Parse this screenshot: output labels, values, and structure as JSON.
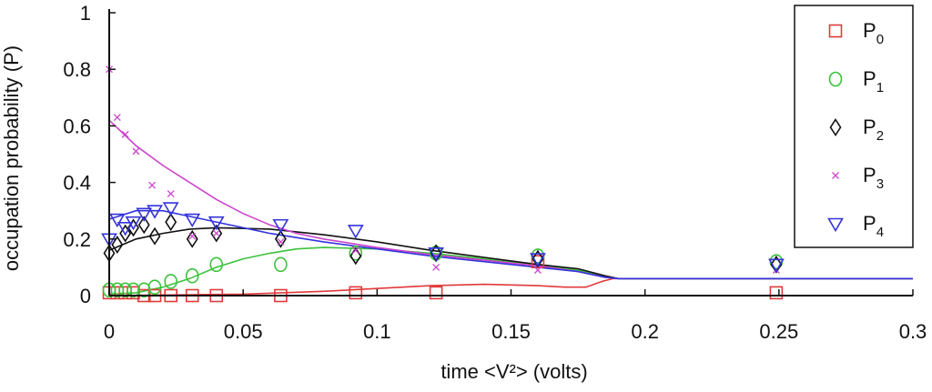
{
  "chart_data": {
    "type": "scatter",
    "title": "",
    "xlabel": "time <V²> (volts)",
    "ylabel": "occupation probability (P)",
    "xlim": [
      0,
      0.3
    ],
    "ylim": [
      0,
      1
    ],
    "xticks": [
      0,
      0.05,
      0.1,
      0.15,
      0.2,
      0.25,
      0.3
    ],
    "xtick_labels": [
      "0",
      "0.05",
      "0.1",
      "0.15",
      "0.2",
      "0.25",
      "0.3"
    ],
    "yticks": [
      0,
      0.2,
      0.4,
      0.6,
      0.8,
      1
    ],
    "ytick_labels": [
      "0",
      "0.2",
      "0.4",
      "0.6",
      "0.8",
      "1"
    ],
    "legend_position": "top-right",
    "series": [
      {
        "name": "P0",
        "base": "P",
        "sub": "0",
        "marker": "square",
        "color": "#e03a3a",
        "points": [
          [
            0,
            0.01
          ],
          [
            0.003,
            0.01
          ],
          [
            0.006,
            0.01
          ],
          [
            0.009,
            0.01
          ],
          [
            0.013,
            0.0
          ],
          [
            0.017,
            0.0
          ],
          [
            0.023,
            0.0
          ],
          [
            0.031,
            0.0
          ],
          [
            0.04,
            0.0
          ],
          [
            0.064,
            0.0
          ],
          [
            0.092,
            0.01
          ],
          [
            0.122,
            0.01
          ],
          [
            0.16,
            0.12
          ],
          [
            0.249,
            0.01
          ]
        ],
        "fit": [
          [
            0,
            0.0
          ],
          [
            0.05,
            0.005
          ],
          [
            0.08,
            0.015
          ],
          [
            0.1,
            0.025
          ],
          [
            0.12,
            0.035
          ],
          [
            0.14,
            0.04
          ],
          [
            0.16,
            0.035
          ],
          [
            0.17,
            0.03
          ],
          [
            0.178,
            0.03
          ],
          [
            0.184,
            0.05
          ],
          [
            0.188,
            0.06
          ],
          [
            0.3,
            0.06
          ]
        ]
      },
      {
        "name": "P1",
        "base": "P",
        "sub": "1",
        "marker": "circle",
        "color": "#3cc23c",
        "points": [
          [
            0,
            0.02
          ],
          [
            0.003,
            0.02
          ],
          [
            0.006,
            0.02
          ],
          [
            0.009,
            0.02
          ],
          [
            0.013,
            0.02
          ],
          [
            0.017,
            0.03
          ],
          [
            0.023,
            0.05
          ],
          [
            0.031,
            0.07
          ],
          [
            0.04,
            0.11
          ],
          [
            0.064,
            0.11
          ],
          [
            0.092,
            0.15
          ],
          [
            0.122,
            0.15
          ],
          [
            0.16,
            0.14
          ],
          [
            0.249,
            0.12
          ]
        ],
        "fit": [
          [
            0,
            0.005
          ],
          [
            0.01,
            0.01
          ],
          [
            0.02,
            0.03
          ],
          [
            0.03,
            0.06
          ],
          [
            0.04,
            0.1
          ],
          [
            0.05,
            0.13
          ],
          [
            0.06,
            0.15
          ],
          [
            0.07,
            0.165
          ],
          [
            0.08,
            0.17
          ],
          [
            0.1,
            0.165
          ],
          [
            0.12,
            0.15
          ],
          [
            0.14,
            0.13
          ],
          [
            0.16,
            0.11
          ],
          [
            0.175,
            0.09
          ],
          [
            0.185,
            0.065
          ],
          [
            0.19,
            0.06
          ],
          [
            0.3,
            0.06
          ]
        ]
      },
      {
        "name": "P2",
        "base": "P",
        "sub": "2",
        "marker": "diamond",
        "color": "#111111",
        "points": [
          [
            0,
            0.15
          ],
          [
            0.003,
            0.18
          ],
          [
            0.006,
            0.22
          ],
          [
            0.009,
            0.24
          ],
          [
            0.013,
            0.25
          ],
          [
            0.017,
            0.21
          ],
          [
            0.023,
            0.26
          ],
          [
            0.031,
            0.2
          ],
          [
            0.04,
            0.22
          ],
          [
            0.064,
            0.2
          ],
          [
            0.092,
            0.14
          ],
          [
            0.122,
            0.15
          ],
          [
            0.16,
            0.13
          ],
          [
            0.249,
            0.11
          ]
        ],
        "fit": [
          [
            0,
            0.16
          ],
          [
            0.01,
            0.2
          ],
          [
            0.02,
            0.22
          ],
          [
            0.03,
            0.235
          ],
          [
            0.04,
            0.24
          ],
          [
            0.06,
            0.235
          ],
          [
            0.08,
            0.215
          ],
          [
            0.1,
            0.19
          ],
          [
            0.12,
            0.16
          ],
          [
            0.14,
            0.135
          ],
          [
            0.16,
            0.11
          ],
          [
            0.175,
            0.095
          ],
          [
            0.185,
            0.07
          ],
          [
            0.19,
            0.06
          ],
          [
            0.3,
            0.06
          ]
        ]
      },
      {
        "name": "P3",
        "base": "P",
        "sub": "3",
        "marker": "x",
        "color": "#cc44cc",
        "points": [
          [
            0,
            0.8
          ],
          [
            0.003,
            0.63
          ],
          [
            0.006,
            0.57
          ],
          [
            0.01,
            0.51
          ],
          [
            0.016,
            0.39
          ],
          [
            0.023,
            0.36
          ],
          [
            0.031,
            0.21
          ],
          [
            0.04,
            0.22
          ],
          [
            0.064,
            0.19
          ],
          [
            0.092,
            0.16
          ],
          [
            0.122,
            0.1
          ],
          [
            0.16,
            0.09
          ],
          [
            0.249,
            0.09
          ]
        ],
        "fit": [
          [
            0,
            0.62
          ],
          [
            0.01,
            0.53
          ],
          [
            0.02,
            0.46
          ],
          [
            0.03,
            0.4
          ],
          [
            0.04,
            0.34
          ],
          [
            0.05,
            0.29
          ],
          [
            0.06,
            0.25
          ],
          [
            0.07,
            0.22
          ],
          [
            0.08,
            0.2
          ],
          [
            0.1,
            0.17
          ],
          [
            0.12,
            0.145
          ],
          [
            0.14,
            0.125
          ],
          [
            0.16,
            0.105
          ],
          [
            0.175,
            0.085
          ],
          [
            0.185,
            0.065
          ],
          [
            0.19,
            0.06
          ],
          [
            0.3,
            0.06
          ]
        ]
      },
      {
        "name": "P4",
        "base": "P",
        "sub": "4",
        "marker": "triangle-down",
        "color": "#3333dd",
        "points": [
          [
            0,
            0.2
          ],
          [
            0.003,
            0.27
          ],
          [
            0.006,
            0.24
          ],
          [
            0.009,
            0.26
          ],
          [
            0.013,
            0.29
          ],
          [
            0.017,
            0.3
          ],
          [
            0.023,
            0.31
          ],
          [
            0.031,
            0.27
          ],
          [
            0.04,
            0.26
          ],
          [
            0.064,
            0.25
          ],
          [
            0.092,
            0.23
          ],
          [
            0.122,
            0.15
          ],
          [
            0.16,
            0.13
          ],
          [
            0.249,
            0.11
          ]
        ],
        "fit": [
          [
            0,
            0.27
          ],
          [
            0.01,
            0.3
          ],
          [
            0.02,
            0.3
          ],
          [
            0.03,
            0.28
          ],
          [
            0.04,
            0.26
          ],
          [
            0.06,
            0.22
          ],
          [
            0.08,
            0.19
          ],
          [
            0.1,
            0.165
          ],
          [
            0.12,
            0.14
          ],
          [
            0.14,
            0.12
          ],
          [
            0.16,
            0.1
          ],
          [
            0.175,
            0.085
          ],
          [
            0.185,
            0.065
          ],
          [
            0.19,
            0.06
          ],
          [
            0.3,
            0.06
          ]
        ]
      }
    ]
  }
}
